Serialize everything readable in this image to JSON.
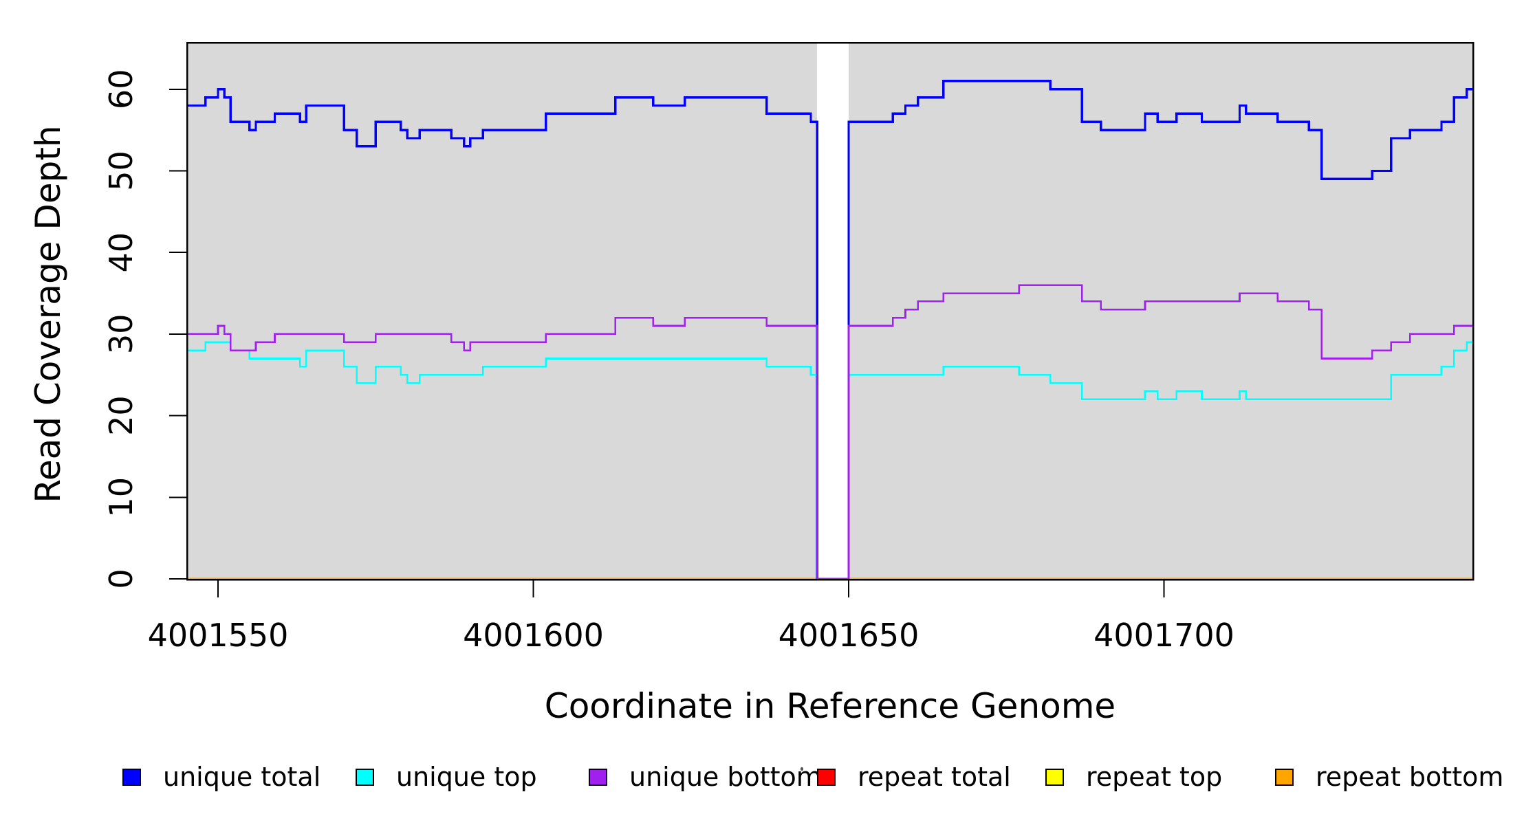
{
  "figure": {
    "y_axis_title": "Read Coverage Depth",
    "x_axis_title": "Coordinate in Reference Genome"
  },
  "chart_data": {
    "type": "line",
    "subtype": "step-coverage-plot",
    "title": "",
    "xlabel": "Coordinate in Reference Genome",
    "ylabel": "Read Coverage Depth",
    "x_ticks": [
      4001550,
      4001600,
      4001650,
      4001700
    ],
    "y_ticks": [
      0,
      10,
      20,
      30,
      40,
      50,
      60
    ],
    "xlim": [
      4001545,
      4001749
    ],
    "ylim": [
      0,
      65.7
    ],
    "x_end": 4001749,
    "grid": "off",
    "background_color": "#d9d9d9",
    "background_regions": [
      [
        4001545,
        4001645
      ],
      [
        4001650,
        4001749
      ]
    ],
    "coverage_gap": {
      "from": 4001645,
      "to": 4001650,
      "note": "all series drop to 0, background white"
    },
    "series": [
      {
        "name": "repeat total",
        "color": "#ff0000",
        "width": 2.6,
        "points": [
          [
            4001545,
            0
          ]
        ]
      },
      {
        "name": "repeat top",
        "color": "#ffff00",
        "width": 2.6,
        "points": [
          [
            4001545,
            0
          ]
        ]
      },
      {
        "name": "repeat bottom",
        "color": "#ffa500",
        "width": 3,
        "points": [
          [
            4001545,
            0
          ]
        ]
      },
      {
        "name": "unique total",
        "color": "#0000ff",
        "width": 3.4,
        "points": [
          [
            4001545,
            58
          ],
          [
            4001548,
            59
          ],
          [
            4001550,
            60
          ],
          [
            4001551,
            59
          ],
          [
            4001552,
            56
          ],
          [
            4001555,
            55
          ],
          [
            4001556,
            56
          ],
          [
            4001559,
            57
          ],
          [
            4001563,
            56
          ],
          [
            4001564,
            58
          ],
          [
            4001570,
            55
          ],
          [
            4001572,
            53
          ],
          [
            4001575,
            56
          ],
          [
            4001579,
            55
          ],
          [
            4001580,
            54
          ],
          [
            4001582,
            55
          ],
          [
            4001587,
            54
          ],
          [
            4001589,
            53
          ],
          [
            4001590,
            54
          ],
          [
            4001592,
            55
          ],
          [
            4001602,
            57
          ],
          [
            4001613,
            59
          ],
          [
            4001619,
            58
          ],
          [
            4001624,
            59
          ],
          [
            4001637,
            57
          ],
          [
            4001644,
            56
          ],
          [
            4001645,
            0
          ],
          [
            4001650,
            56
          ],
          [
            4001657,
            57
          ],
          [
            4001659,
            58
          ],
          [
            4001661,
            59
          ],
          [
            4001665,
            61
          ],
          [
            4001682,
            60
          ],
          [
            4001687,
            56
          ],
          [
            4001690,
            55
          ],
          [
            4001697,
            57
          ],
          [
            4001699,
            56
          ],
          [
            4001702,
            57
          ],
          [
            4001706,
            56
          ],
          [
            4001712,
            58
          ],
          [
            4001713,
            57
          ],
          [
            4001718,
            56
          ],
          [
            4001723,
            55
          ],
          [
            4001725,
            49
          ],
          [
            4001733,
            50
          ],
          [
            4001736,
            54
          ],
          [
            4001739,
            55
          ],
          [
            4001744,
            56
          ],
          [
            4001746,
            59
          ],
          [
            4001748,
            60
          ]
        ]
      },
      {
        "name": "unique top",
        "color": "#00ffff",
        "width": 2.6,
        "points": [
          [
            4001545,
            28
          ],
          [
            4001548,
            29
          ],
          [
            4001552,
            28
          ],
          [
            4001555,
            27
          ],
          [
            4001563,
            26
          ],
          [
            4001564,
            28
          ],
          [
            4001570,
            26
          ],
          [
            4001572,
            24
          ],
          [
            4001575,
            26
          ],
          [
            4001579,
            25
          ],
          [
            4001580,
            24
          ],
          [
            4001582,
            25
          ],
          [
            4001592,
            26
          ],
          [
            4001602,
            27
          ],
          [
            4001637,
            26
          ],
          [
            4001644,
            25
          ],
          [
            4001645,
            0
          ],
          [
            4001650,
            25
          ],
          [
            4001665,
            26
          ],
          [
            4001677,
            25
          ],
          [
            4001682,
            24
          ],
          [
            4001687,
            22
          ],
          [
            4001697,
            23
          ],
          [
            4001699,
            22
          ],
          [
            4001702,
            23
          ],
          [
            4001706,
            22
          ],
          [
            4001712,
            23
          ],
          [
            4001713,
            22
          ],
          [
            4001736,
            25
          ],
          [
            4001744,
            26
          ],
          [
            4001746,
            28
          ],
          [
            4001748,
            29
          ]
        ]
      },
      {
        "name": "unique bottom",
        "color": "#a020f0",
        "width": 2.6,
        "points": [
          [
            4001545,
            30
          ],
          [
            4001550,
            31
          ],
          [
            4001551,
            30
          ],
          [
            4001552,
            28
          ],
          [
            4001556,
            29
          ],
          [
            4001559,
            30
          ],
          [
            4001570,
            29
          ],
          [
            4001575,
            30
          ],
          [
            4001587,
            29
          ],
          [
            4001589,
            28
          ],
          [
            4001590,
            29
          ],
          [
            4001602,
            30
          ],
          [
            4001613,
            32
          ],
          [
            4001619,
            31
          ],
          [
            4001624,
            32
          ],
          [
            4001637,
            31
          ],
          [
            4001645,
            0
          ],
          [
            4001650,
            31
          ],
          [
            4001657,
            32
          ],
          [
            4001659,
            33
          ],
          [
            4001661,
            34
          ],
          [
            4001665,
            35
          ],
          [
            4001677,
            36
          ],
          [
            4001687,
            34
          ],
          [
            4001690,
            33
          ],
          [
            4001697,
            34
          ],
          [
            4001712,
            35
          ],
          [
            4001718,
            34
          ],
          [
            4001723,
            33
          ],
          [
            4001725,
            27
          ],
          [
            4001733,
            28
          ],
          [
            4001736,
            29
          ],
          [
            4001739,
            30
          ],
          [
            4001746,
            31
          ]
        ]
      }
    ],
    "legend_position": "bottom"
  },
  "legend": {
    "items": [
      {
        "label": "unique total",
        "color": "#0000ff"
      },
      {
        "label": "unique top",
        "color": "#00ffff"
      },
      {
        "label": "unique bottom",
        "color": "#a020f0"
      },
      {
        "label": "repeat total",
        "color": "#ff0000"
      },
      {
        "label": "repeat top",
        "color": "#ffff00"
      },
      {
        "label": "repeat bottom",
        "color": "#ffa500"
      }
    ]
  }
}
